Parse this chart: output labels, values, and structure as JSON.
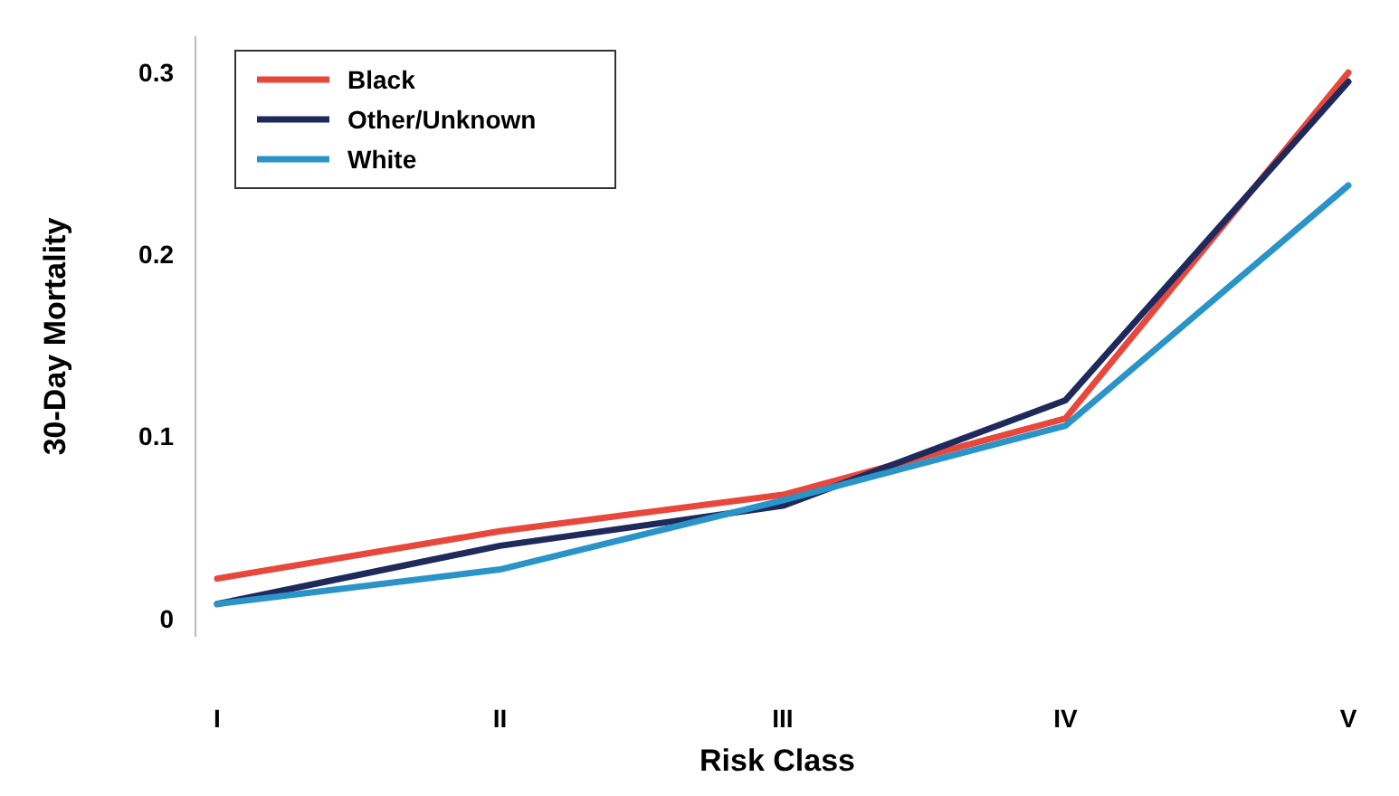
{
  "chart_data": {
    "type": "line",
    "xlabel": "Risk Class",
    "ylabel": "30-Day Mortality",
    "categories": [
      "I",
      "II",
      "III",
      "IV",
      "V"
    ],
    "series": [
      {
        "name": "Black",
        "color": "#e8473c",
        "values": [
          0.022,
          0.048,
          0.068,
          0.11,
          0.3
        ]
      },
      {
        "name": "Other/Unknown",
        "color": "#1f2a5c",
        "values": [
          0.008,
          0.04,
          0.062,
          0.12,
          0.295
        ]
      },
      {
        "name": "White",
        "color": "#2a94c8",
        "values": [
          0.008,
          0.027,
          0.065,
          0.106,
          0.238
        ]
      }
    ],
    "ylim": [
      -0.01,
      0.32
    ],
    "yticks": [
      0,
      0.1,
      0.2,
      0.3
    ],
    "grid": false,
    "legend": "top left",
    "marker": "none",
    "line_style": "solid"
  }
}
